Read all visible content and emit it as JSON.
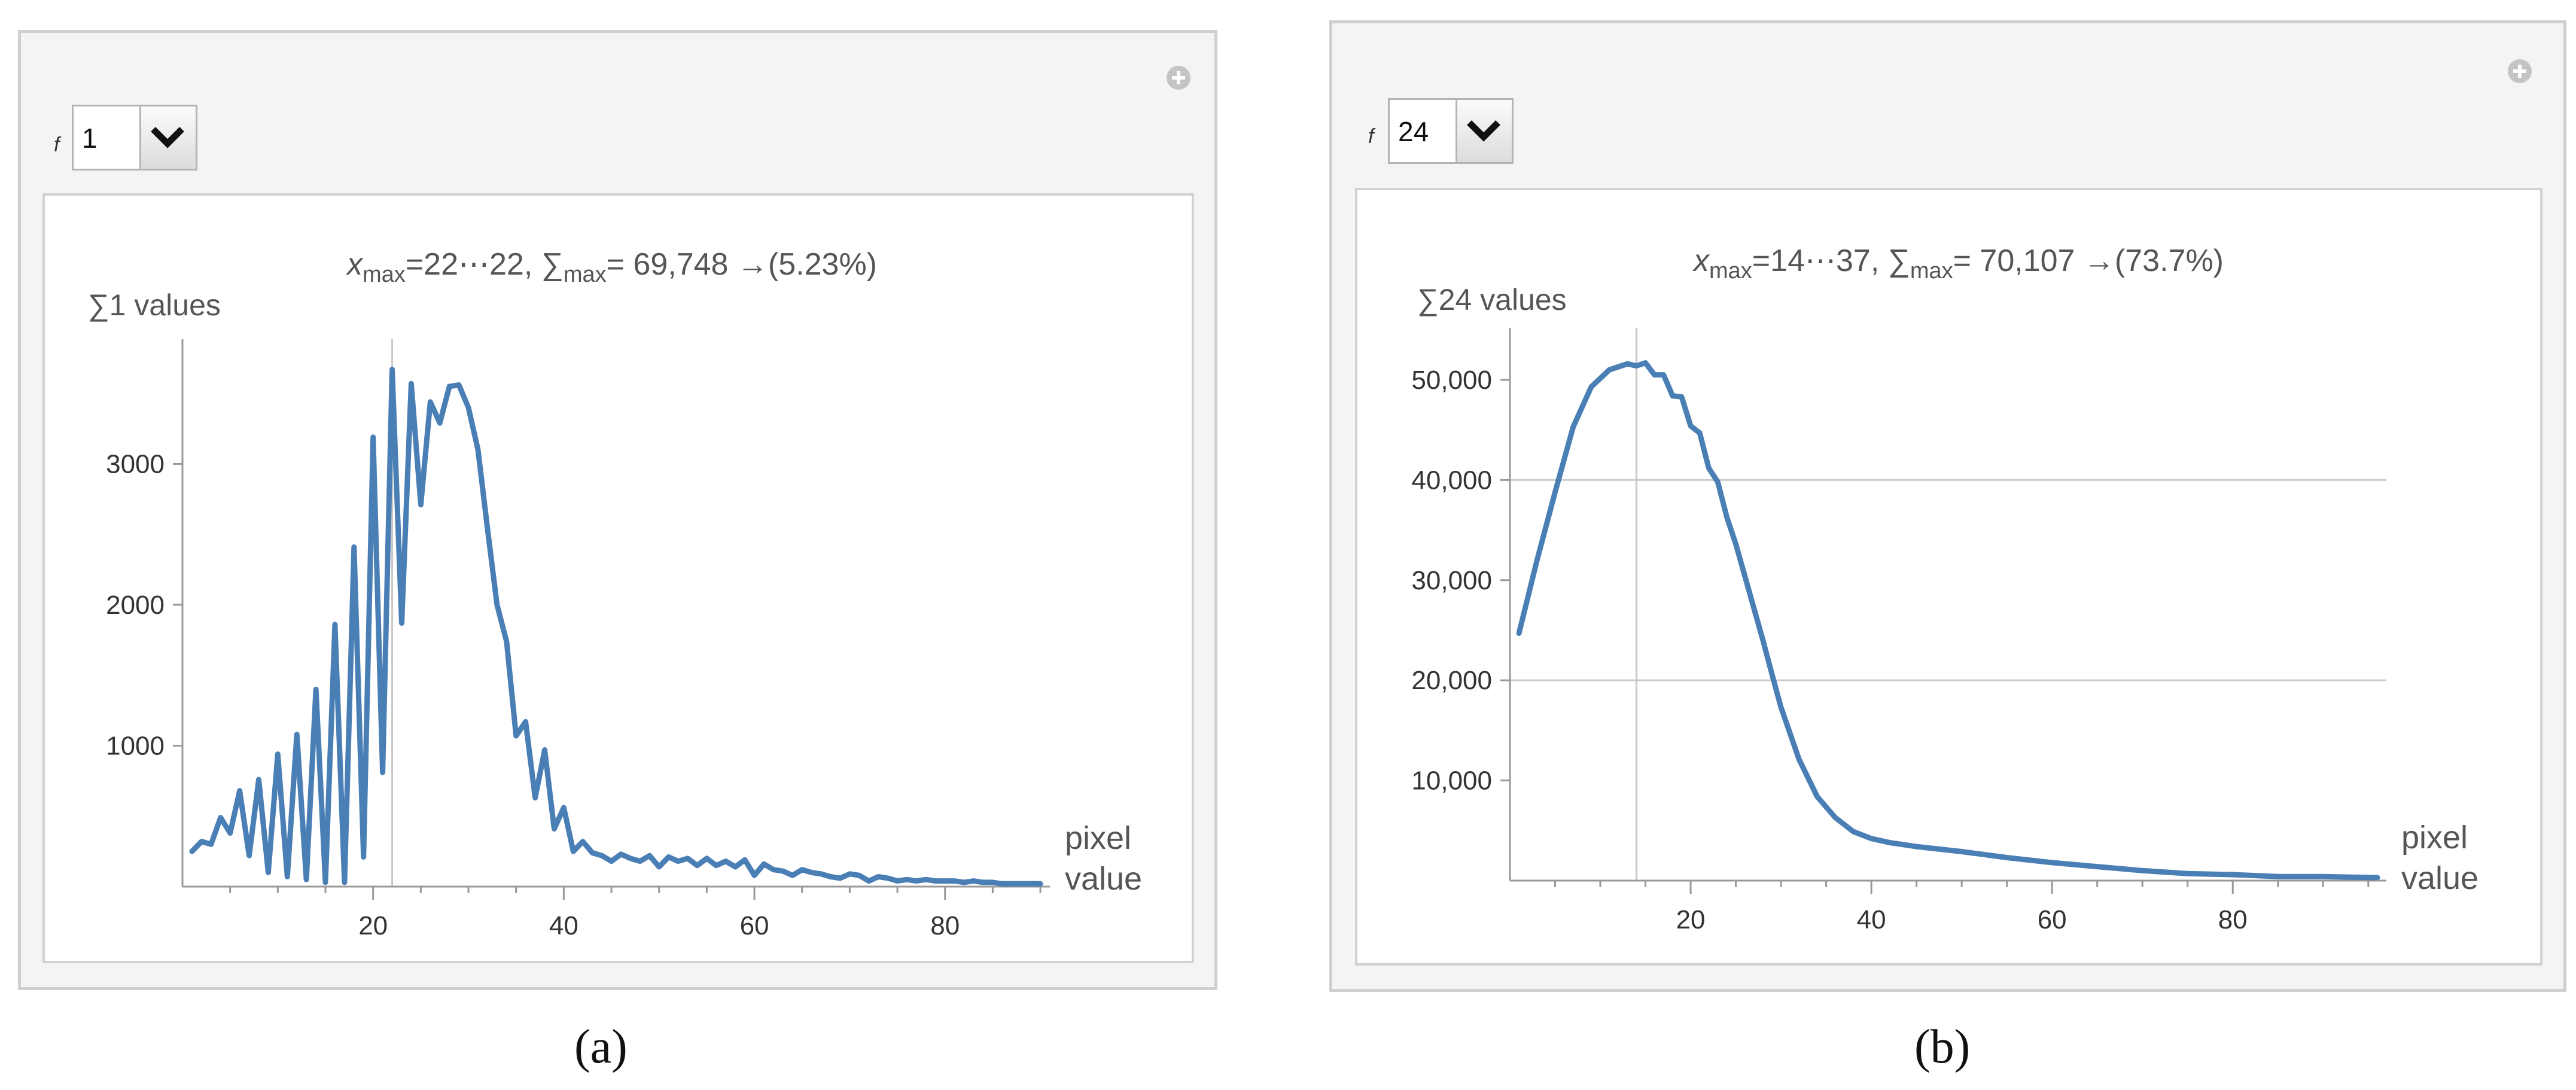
{
  "panels": [
    {
      "selector_label": "f",
      "selector_value": "1",
      "caption": "(a)",
      "plot_title": {
        "x": "x",
        "max1": "max",
        "mid": "=22⋯22,  ∑",
        "max2": "max",
        "rest": "= 69,748 →(5.23%)"
      }
    },
    {
      "selector_label": "f",
      "selector_value": "24",
      "caption": "(b)",
      "plot_title": {
        "x": "x",
        "max1": "max",
        "mid": "=14⋯37,  ∑",
        "max2": "max",
        "rest": "= 70,107 →(73.7%)"
      }
    }
  ],
  "chart_data": [
    {
      "type": "line",
      "ylabel": "∑1 values",
      "xlabel": "pixel value",
      "xlabel_lines": [
        "pixel",
        "value"
      ],
      "xlim": [
        0,
        91
      ],
      "ylim": [
        0,
        3800
      ],
      "xticks": [
        20,
        40,
        60,
        80
      ],
      "yticks": [
        1000,
        2000,
        3000
      ],
      "ytick_labels": [
        "1000",
        "2000",
        "3000"
      ],
      "vline_x": 22,
      "grid_y": [],
      "color": "#4a7fb5",
      "x": [
        1,
        2,
        3,
        4,
        5,
        6,
        7,
        8,
        9,
        10,
        11,
        12,
        13,
        14,
        15,
        16,
        17,
        18,
        19,
        20,
        21,
        22,
        23,
        24,
        25,
        26,
        27,
        28,
        29,
        30,
        31,
        32,
        33,
        34,
        35,
        36,
        37,
        38,
        39,
        40,
        41,
        42,
        43,
        44,
        45,
        46,
        47,
        48,
        49,
        50,
        51,
        52,
        53,
        54,
        55,
        56,
        57,
        58,
        59,
        60,
        61,
        62,
        63,
        64,
        65,
        66,
        67,
        68,
        69,
        70,
        71,
        72,
        73,
        74,
        75,
        76,
        77,
        78,
        79,
        80,
        81,
        82,
        83,
        84,
        85,
        86,
        87,
        88,
        89,
        90
      ],
      "y": [
        250,
        320,
        300,
        490,
        380,
        680,
        220,
        760,
        100,
        940,
        70,
        1080,
        50,
        1400,
        30,
        1860,
        30,
        2410,
        210,
        3190,
        810,
        3670,
        1870,
        3570,
        2710,
        3440,
        3290,
        3550,
        3560,
        3400,
        3100,
        2540,
        2000,
        1740,
        1070,
        1170,
        630,
        970,
        410,
        560,
        250,
        320,
        240,
        220,
        180,
        230,
        200,
        180,
        220,
        140,
        210,
        180,
        200,
        150,
        200,
        150,
        180,
        140,
        190,
        80,
        160,
        120,
        110,
        80,
        120,
        100,
        90,
        70,
        60,
        90,
        80,
        40,
        70,
        60,
        40,
        50,
        40,
        50,
        40,
        40,
        40,
        30,
        40,
        30,
        30,
        20,
        20,
        20,
        20,
        20
      ]
    },
    {
      "type": "line",
      "ylabel": "∑24 values",
      "xlabel": "pixel value",
      "xlabel_lines": [
        "pixel",
        "value"
      ],
      "xlim": [
        0,
        97
      ],
      "ylim": [
        0,
        54000
      ],
      "xticks": [
        20,
        40,
        60,
        80
      ],
      "yticks": [
        10000,
        20000,
        30000,
        40000,
        50000
      ],
      "ytick_labels": [
        "10,000",
        "20,000",
        "30,000",
        "40,000",
        "50,000"
      ],
      "vline_x": 14,
      "grid_y": [
        20000,
        40000
      ],
      "color": "#4a7fb5",
      "x": [
        1,
        3,
        5,
        7,
        9,
        11,
        13,
        14,
        15,
        16,
        17,
        18,
        19,
        20,
        21,
        22,
        23,
        24,
        25,
        26,
        27,
        28,
        29,
        30,
        32,
        34,
        36,
        38,
        40,
        42,
        45,
        50,
        55,
        60,
        65,
        70,
        75,
        80,
        85,
        90,
        96
      ],
      "y": [
        24700,
        32000,
        38800,
        45300,
        49300,
        51000,
        51600,
        51400,
        51700,
        50500,
        50500,
        48400,
        48300,
        45400,
        44700,
        41200,
        39800,
        36300,
        33600,
        30400,
        27200,
        24000,
        20600,
        17300,
        12100,
        8400,
        6300,
        4900,
        4200,
        3800,
        3400,
        2900,
        2300,
        1800,
        1400,
        1000,
        700,
        600,
        400,
        400,
        300
      ]
    }
  ]
}
